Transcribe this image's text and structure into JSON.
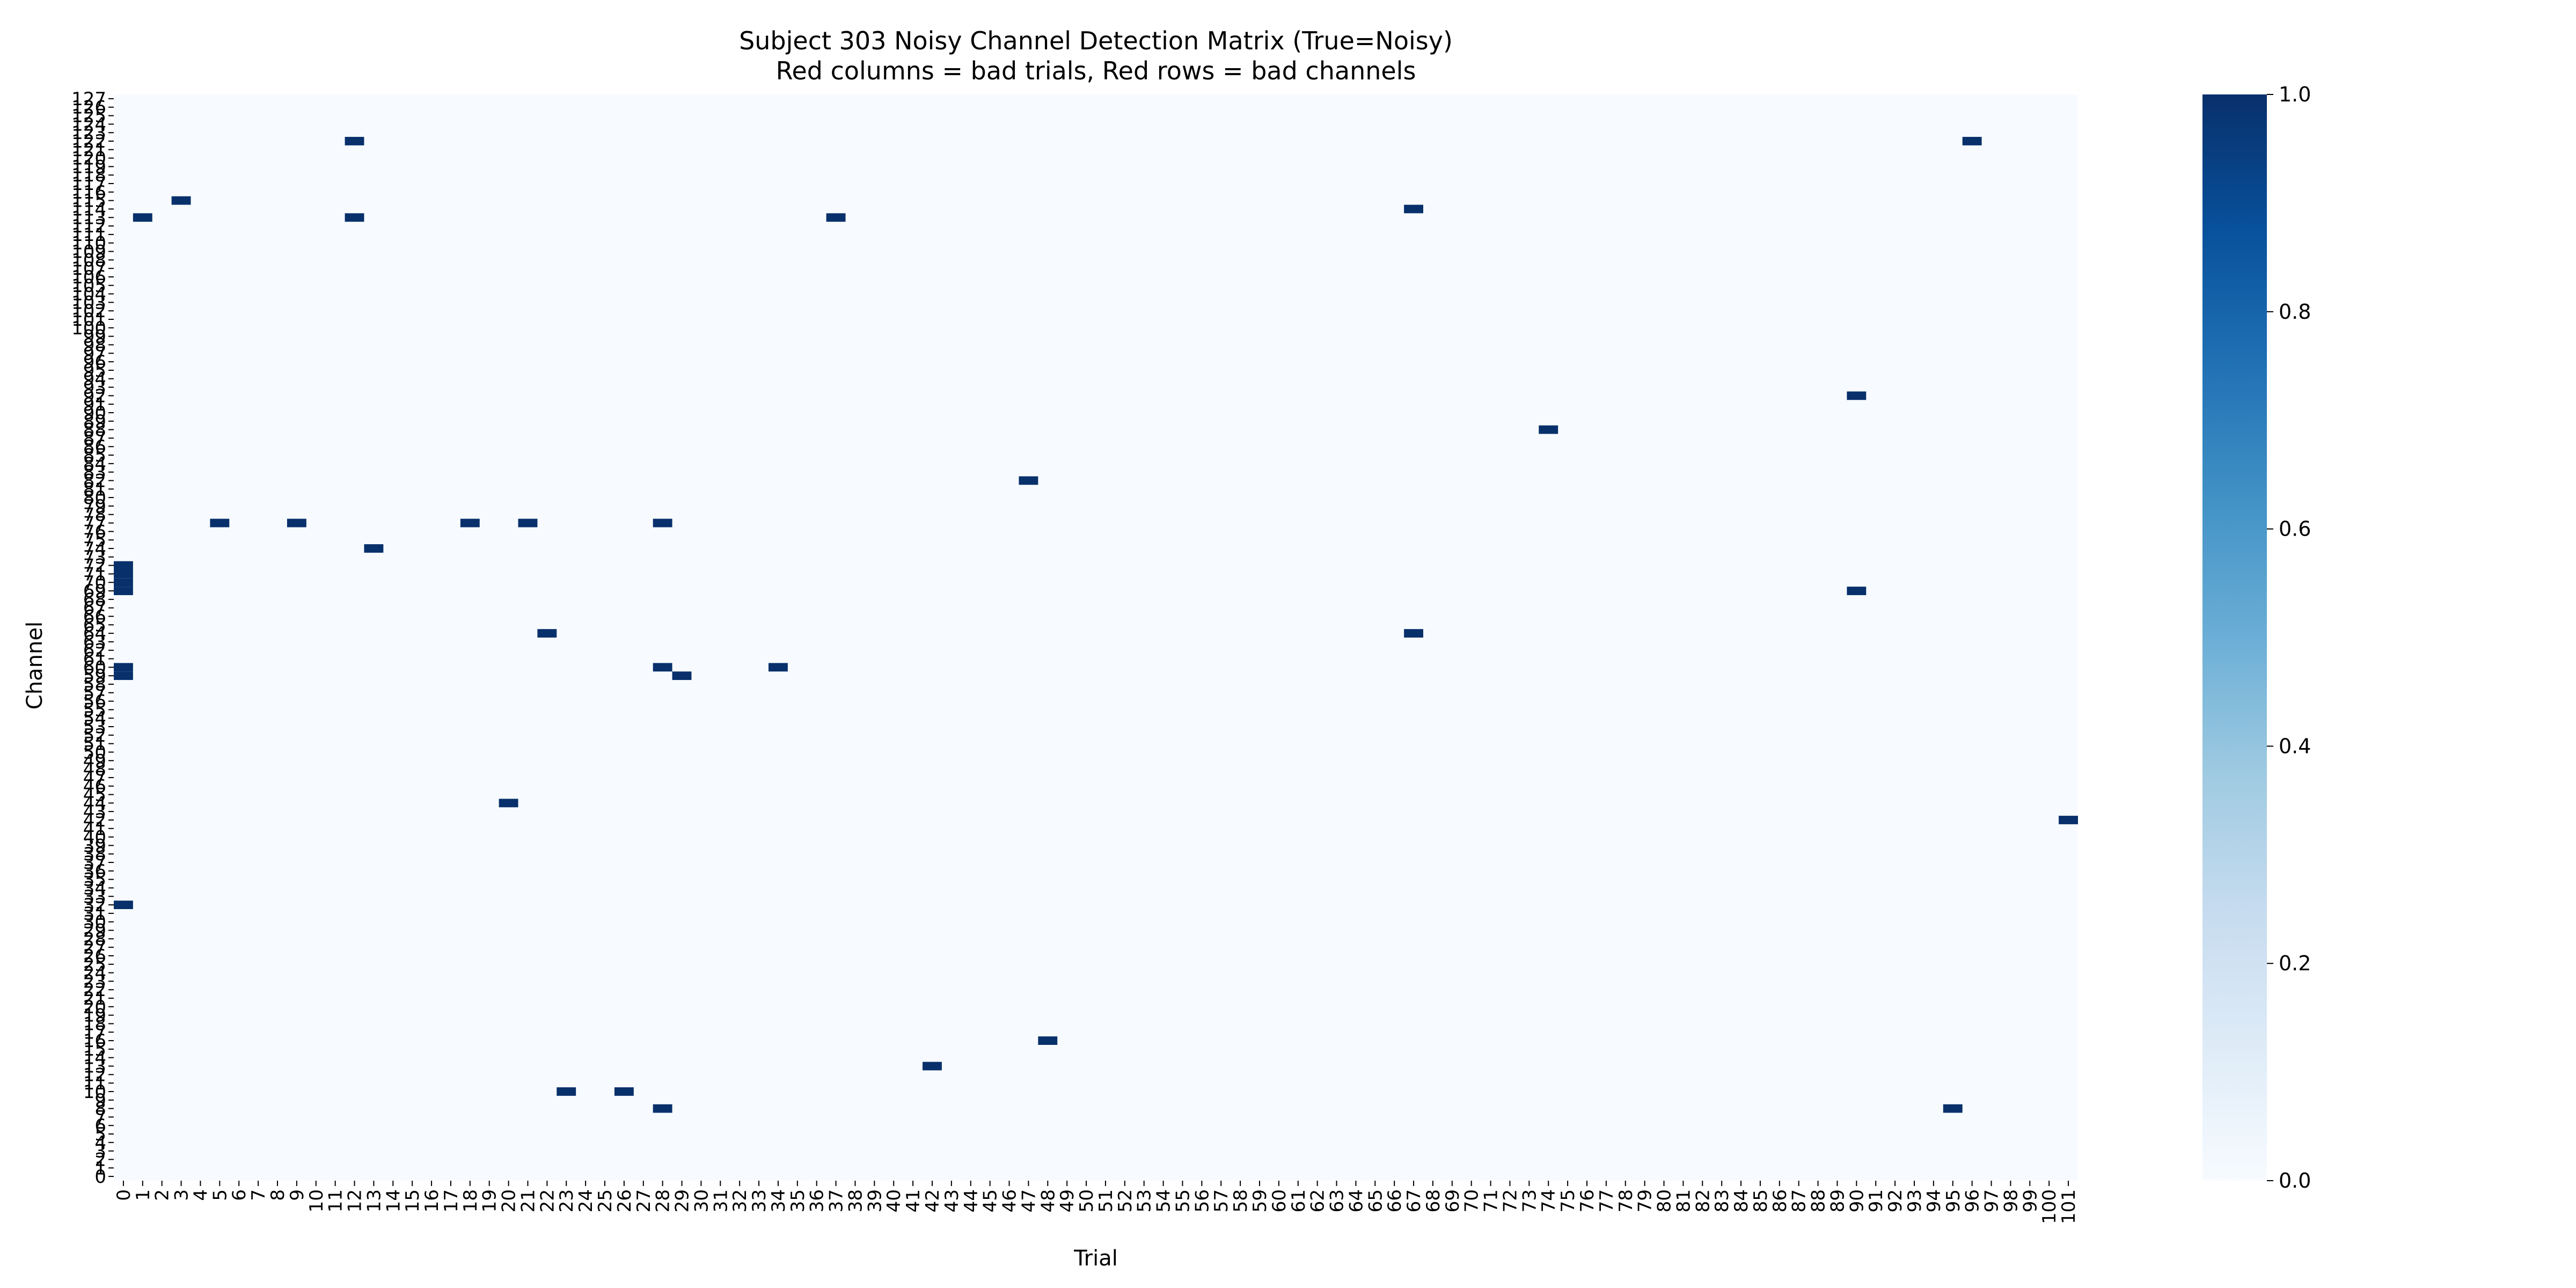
{
  "chart_data": {
    "type": "heatmap",
    "title": "Subject 303 Noisy Channel Detection Matrix (True=Noisy)",
    "subtitle": "Red columns = bad trials, Red rows = bad channels",
    "xlabel": "Trial",
    "ylabel": "Channel",
    "n_trials": 102,
    "n_channels": 128,
    "x_ticks": [
      0,
      1,
      2,
      3,
      4,
      5,
      6,
      7,
      8,
      9,
      10,
      11,
      12,
      13,
      14,
      15,
      16,
      17,
      18,
      19,
      20,
      21,
      22,
      23,
      24,
      25,
      26,
      27,
      28,
      29,
      30,
      31,
      32,
      33,
      34,
      35,
      36,
      37,
      38,
      39,
      40,
      41,
      42,
      43,
      44,
      45,
      46,
      47,
      48,
      49,
      50,
      51,
      52,
      53,
      54,
      55,
      56,
      57,
      58,
      59,
      60,
      61,
      62,
      63,
      64,
      65,
      66,
      67,
      68,
      69,
      70,
      71,
      72,
      73,
      74,
      75,
      76,
      77,
      78,
      79,
      80,
      81,
      82,
      83,
      84,
      85,
      86,
      87,
      88,
      89,
      90,
      91,
      92,
      93,
      94,
      95,
      96,
      97,
      98,
      99,
      100,
      101
    ],
    "y_ticks": [
      0,
      1,
      2,
      3,
      4,
      5,
      6,
      7,
      8,
      9,
      10,
      11,
      12,
      13,
      14,
      15,
      16,
      17,
      18,
      19,
      20,
      21,
      22,
      23,
      24,
      25,
      26,
      27,
      28,
      29,
      30,
      31,
      32,
      33,
      34,
      35,
      36,
      37,
      38,
      39,
      40,
      41,
      42,
      43,
      44,
      45,
      46,
      47,
      48,
      49,
      50,
      51,
      52,
      53,
      54,
      55,
      56,
      57,
      58,
      59,
      60,
      61,
      62,
      63,
      64,
      65,
      66,
      67,
      68,
      69,
      70,
      71,
      72,
      73,
      74,
      75,
      76,
      77,
      78,
      79,
      80,
      81,
      82,
      83,
      84,
      85,
      86,
      87,
      88,
      89,
      90,
      91,
      92,
      93,
      94,
      95,
      96,
      97,
      98,
      99,
      100,
      101,
      102,
      103,
      104,
      105,
      106,
      107,
      108,
      109,
      110,
      111,
      112,
      113,
      114,
      115,
      116,
      117,
      118,
      119,
      120,
      121,
      122,
      123,
      124,
      125,
      126,
      127
    ],
    "colorbar": {
      "min": 0.0,
      "max": 1.0,
      "ticks": [
        "0.0",
        "0.2",
        "0.4",
        "0.6",
        "0.8",
        "1.0"
      ]
    },
    "colormap": [
      "#f7fbff",
      "#deebf7",
      "#c6dbef",
      "#9ecae1",
      "#6baed6",
      "#4292c6",
      "#2171b5",
      "#08519c",
      "#08306b"
    ],
    "noisy_cells": [
      [
        12,
        122
      ],
      [
        96,
        122
      ],
      [
        3,
        115
      ],
      [
        1,
        113
      ],
      [
        12,
        113
      ],
      [
        37,
        113
      ],
      [
        67,
        114
      ],
      [
        90,
        92
      ],
      [
        74,
        88
      ],
      [
        47,
        82
      ],
      [
        5,
        77
      ],
      [
        9,
        77
      ],
      [
        18,
        77
      ],
      [
        21,
        77
      ],
      [
        28,
        77
      ],
      [
        13,
        74
      ],
      [
        0,
        72
      ],
      [
        0,
        71
      ],
      [
        0,
        70
      ],
      [
        0,
        69
      ],
      [
        90,
        69
      ],
      [
        22,
        64
      ],
      [
        67,
        64
      ],
      [
        0,
        60
      ],
      [
        0,
        59
      ],
      [
        28,
        60
      ],
      [
        29,
        59
      ],
      [
        34,
        60
      ],
      [
        20,
        44
      ],
      [
        101,
        42
      ],
      [
        0,
        32
      ],
      [
        48,
        16
      ],
      [
        42,
        13
      ],
      [
        23,
        10
      ],
      [
        26,
        10
      ],
      [
        28,
        8
      ],
      [
        95,
        8
      ]
    ]
  }
}
